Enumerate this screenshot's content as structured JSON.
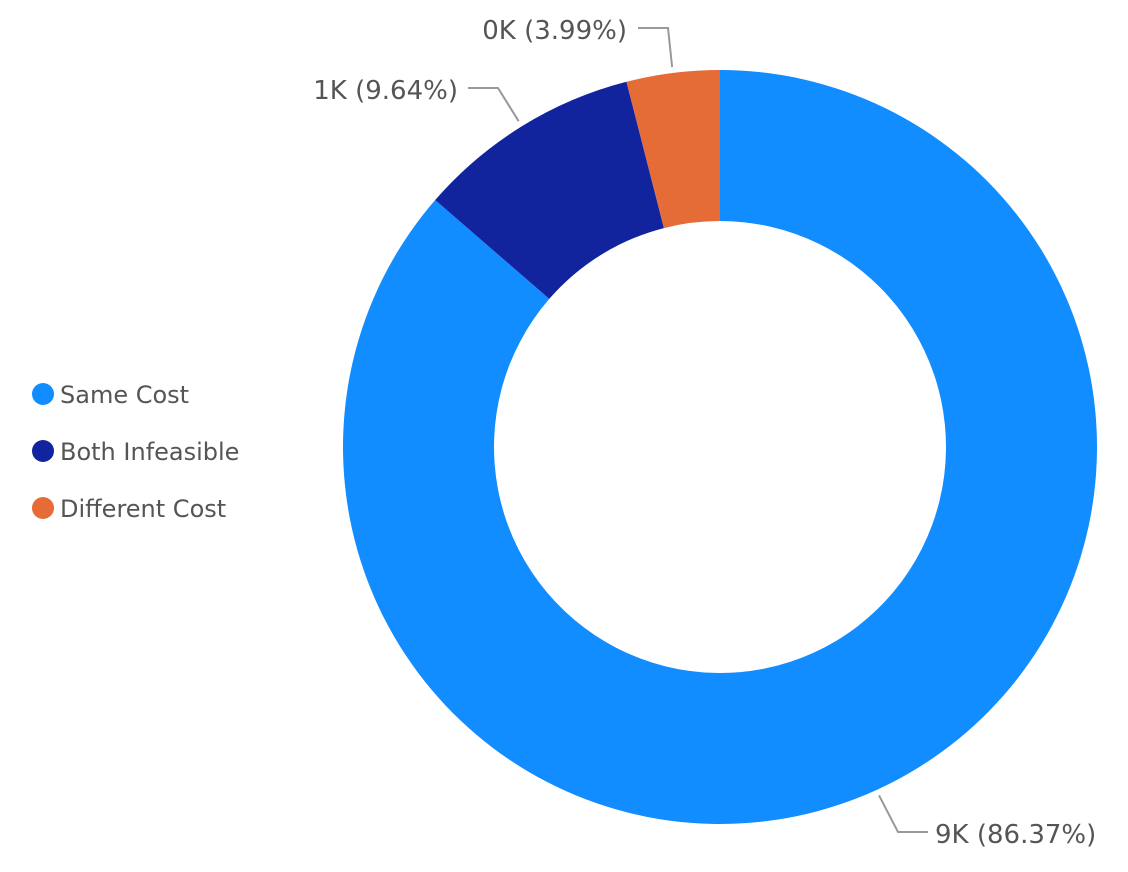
{
  "chart_data": {
    "type": "pie",
    "variant": "donut",
    "title": "",
    "categories": [
      "Same Cost",
      "Both Infeasible",
      "Different Cost"
    ],
    "values": [
      86.37,
      9.64,
      3.99
    ],
    "data_labels": [
      "9K (86.37%)",
      "1K (9.64%)",
      "0K (3.99%)"
    ],
    "colors": [
      "#118DFF",
      "#12239E",
      "#E66C37"
    ],
    "legend": {
      "position": "left",
      "entries": [
        "Same Cost",
        "Both Infeasible",
        "Different Cost"
      ]
    }
  }
}
